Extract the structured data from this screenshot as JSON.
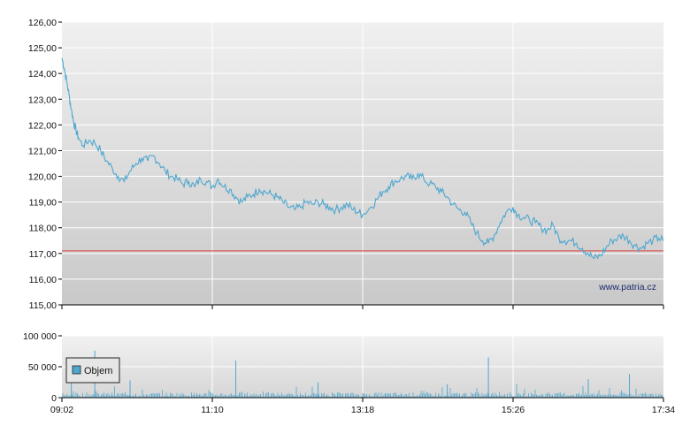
{
  "chart_data": [
    {
      "type": "line",
      "name": "price",
      "x_ticks": [
        "09:02",
        "11:10",
        "13:18",
        "15:26",
        "17:34"
      ],
      "ylim": [
        115,
        126
      ],
      "y_ticks": [
        "115,00",
        "116,00",
        "117,00",
        "118,00",
        "119,00",
        "120,00",
        "121,00",
        "122,00",
        "123,00",
        "124,00",
        "125,00",
        "126,00"
      ],
      "reference_line": 117.1,
      "grid": true,
      "colors": {
        "line": "#4ea7cf",
        "reference": "#e04040",
        "grid": "#ffffff"
      },
      "x": [
        "09:02",
        "09:04",
        "09:06",
        "09:08",
        "09:10",
        "09:12",
        "09:14",
        "09:16",
        "09:20",
        "09:25",
        "09:30",
        "09:35",
        "09:40",
        "09:45",
        "09:50",
        "09:55",
        "10:00",
        "10:05",
        "10:10",
        "10:15",
        "10:20",
        "10:25",
        "10:30",
        "10:35",
        "10:40",
        "10:45",
        "10:50",
        "10:55",
        "11:00",
        "11:05",
        "11:10",
        "11:15",
        "11:20",
        "11:25",
        "11:30",
        "11:35",
        "11:40",
        "11:45",
        "11:50",
        "11:55",
        "12:00",
        "12:05",
        "12:10",
        "12:15",
        "12:20",
        "12:25",
        "12:30",
        "12:35",
        "12:40",
        "12:45",
        "12:50",
        "12:55",
        "13:00",
        "13:05",
        "13:10",
        "13:15",
        "13:18",
        "13:25",
        "13:30",
        "13:35",
        "13:40",
        "13:45",
        "13:50",
        "13:55",
        "14:00",
        "14:05",
        "14:10",
        "14:15",
        "14:20",
        "14:25",
        "14:30",
        "14:35",
        "14:40",
        "14:45",
        "14:50",
        "14:55",
        "15:00",
        "15:05",
        "15:10",
        "15:15",
        "15:20",
        "15:26",
        "15:30",
        "15:35",
        "15:40",
        "15:45",
        "15:50",
        "15:55",
        "16:00",
        "16:05",
        "16:10",
        "16:15",
        "16:20",
        "16:25",
        "16:30",
        "16:35",
        "16:40",
        "16:45",
        "16:50",
        "16:55",
        "17:00",
        "17:05",
        "17:10",
        "17:15",
        "17:20",
        "17:25",
        "17:30",
        "17:34"
      ],
      "values": [
        124.6,
        124.2,
        123.7,
        123.2,
        122.6,
        122.1,
        121.8,
        121.5,
        121.2,
        121.4,
        121.3,
        121.0,
        120.6,
        120.3,
        120.0,
        119.8,
        120.2,
        120.5,
        120.7,
        120.6,
        120.8,
        120.5,
        120.2,
        120.0,
        119.9,
        119.7,
        119.8,
        119.6,
        119.9,
        119.8,
        119.6,
        119.9,
        119.6,
        119.5,
        119.2,
        119.0,
        119.2,
        119.3,
        119.5,
        119.4,
        119.3,
        119.2,
        119.0,
        118.8,
        118.7,
        118.8,
        119.0,
        118.9,
        119.0,
        118.9,
        118.8,
        118.7,
        118.8,
        118.9,
        118.7,
        118.6,
        118.5,
        118.8,
        119.1,
        119.4,
        119.6,
        119.8,
        119.9,
        120.0,
        119.9,
        120.1,
        119.9,
        119.7,
        119.6,
        119.4,
        119.2,
        118.9,
        118.7,
        118.6,
        118.2,
        117.8,
        117.5,
        117.4,
        117.7,
        118.2,
        118.6,
        118.8,
        118.5,
        118.4,
        118.3,
        118.2,
        118.0,
        117.9,
        118.1,
        117.6,
        117.5,
        117.5,
        117.4,
        117.2,
        117.0,
        116.8,
        116.9,
        117.2,
        117.5,
        117.6,
        117.7,
        117.5,
        117.3,
        117.2,
        117.4,
        117.5,
        117.6,
        117.5
      ]
    },
    {
      "type": "bar",
      "name": "volume",
      "legend": "Objem",
      "x_ticks": [
        "09:02",
        "11:10",
        "13:18",
        "15:26",
        "17:34"
      ],
      "ylim": [
        0,
        100000
      ],
      "y_ticks": [
        "0",
        "50 000",
        "100 000"
      ],
      "colors": {
        "bar": "#4ea7cf",
        "legend_swatch": "#4ea7cf"
      },
      "base_level_fraction": 0.05,
      "spikes": [
        {
          "x": "09:30",
          "value": 76000
        },
        {
          "x": "11:30",
          "value": 60000
        },
        {
          "x": "15:05",
          "value": 65000
        },
        {
          "x": "10:00",
          "value": 28000
        },
        {
          "x": "12:40",
          "value": 25000
        },
        {
          "x": "16:30",
          "value": 30000
        },
        {
          "x": "17:05",
          "value": 38000
        },
        {
          "x": "14:30",
          "value": 22000
        },
        {
          "x": "09:10",
          "value": 35000
        }
      ]
    }
  ],
  "watermark": "www.patria.cz"
}
